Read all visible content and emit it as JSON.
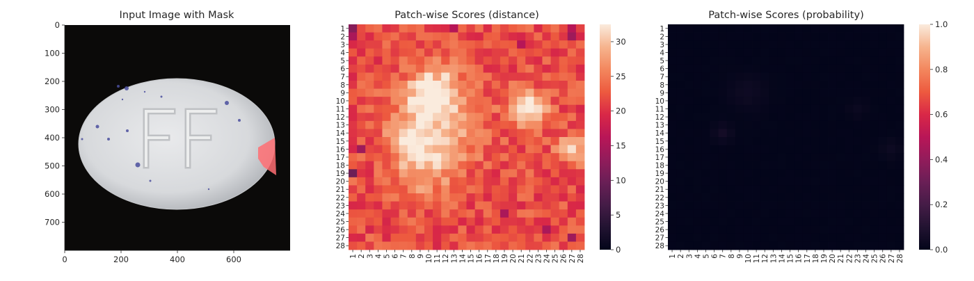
{
  "chart_data": [
    {
      "type": "image",
      "title": "Input Image with Mask",
      "xlim": [
        0,
        800
      ],
      "ylim": [
        800,
        0
      ],
      "xticks": [
        "0",
        "200",
        "400",
        "600"
      ],
      "yticks": [
        "0",
        "100",
        "200",
        "300",
        "400",
        "500",
        "600",
        "700"
      ],
      "content": "white oval pill embossed FF with purple speckles on a black background",
      "mask_color": "#ff6e73"
    },
    {
      "type": "heatmap",
      "title": "Patch-wise Scores (distance)",
      "rows": 28,
      "cols": 28,
      "row_labels": [
        "1",
        "2",
        "3",
        "4",
        "5",
        "6",
        "7",
        "8",
        "9",
        "10",
        "11",
        "12",
        "13",
        "14",
        "15",
        "16",
        "17",
        "18",
        "19",
        "20",
        "21",
        "22",
        "23",
        "24",
        "25",
        "26",
        "27",
        "28"
      ],
      "col_labels": [
        "1",
        "2",
        "3",
        "4",
        "5",
        "6",
        "7",
        "8",
        "9",
        "10",
        "11",
        "12",
        "13",
        "14",
        "15",
        "16",
        "17",
        "18",
        "19",
        "20",
        "21",
        "22",
        "23",
        "24",
        "25",
        "26",
        "27",
        "28"
      ],
      "vmin": 0,
      "vmax": 32.5,
      "colorbar_ticks": [
        "0",
        "5",
        "10",
        "15",
        "20",
        "25",
        "30"
      ],
      "colormap": "rocket",
      "hotspots": [
        {
          "r": 9,
          "c": 10.5,
          "amp": 12,
          "s": 2.2
        },
        {
          "r": 11,
          "c": 22,
          "amp": 10,
          "s": 1.6
        },
        {
          "r": 14.5,
          "c": 7.5,
          "amp": 8,
          "s": 1.3
        },
        {
          "r": 16,
          "c": 27,
          "amp": 9,
          "s": 1.2
        },
        {
          "r": 14,
          "c": 11,
          "amp": 7,
          "s": 3.5
        },
        {
          "r": 19,
          "c": 9,
          "amp": 5,
          "s": 2.5
        }
      ],
      "base": 22,
      "low_cells": [
        [
          1,
          1,
          12
        ],
        [
          19,
          1,
          10
        ],
        [
          2,
          1,
          15
        ],
        [
          1,
          27,
          16
        ],
        [
          2,
          27,
          14
        ],
        [
          16,
          2,
          14
        ],
        [
          27,
          27,
          14
        ],
        [
          24,
          19,
          15
        ],
        [
          26,
          24,
          15
        ],
        [
          1,
          13,
          16
        ],
        [
          3,
          21,
          16
        ]
      ]
    },
    {
      "type": "heatmap",
      "title": "Patch-wise Scores (probability)",
      "rows": 28,
      "cols": 28,
      "row_labels": [
        "1",
        "2",
        "3",
        "4",
        "5",
        "6",
        "7",
        "8",
        "9",
        "10",
        "11",
        "12",
        "13",
        "14",
        "15",
        "16",
        "17",
        "18",
        "19",
        "20",
        "21",
        "22",
        "23",
        "24",
        "25",
        "26",
        "27",
        "28"
      ],
      "col_labels": [
        "1",
        "2",
        "3",
        "4",
        "5",
        "6",
        "7",
        "8",
        "9",
        "10",
        "11",
        "12",
        "13",
        "14",
        "15",
        "16",
        "17",
        "18",
        "19",
        "20",
        "21",
        "22",
        "23",
        "24",
        "25",
        "26",
        "27",
        "28"
      ],
      "vmin": 0,
      "vmax": 1.0,
      "colorbar_ticks": [
        "0.0",
        "0.2",
        "0.4",
        "0.6",
        "0.8",
        "1.0"
      ],
      "colormap": "rocket",
      "hotspots": [
        {
          "r": 9,
          "c": 10,
          "amp": 0.035,
          "s": 1.6
        },
        {
          "r": 14,
          "c": 7,
          "amp": 0.05,
          "s": 0.8
        },
        {
          "r": 11,
          "c": 23,
          "amp": 0.025,
          "s": 0.8
        },
        {
          "r": 16,
          "c": 27,
          "amp": 0.03,
          "s": 0.9
        }
      ],
      "base": 0.002
    }
  ]
}
